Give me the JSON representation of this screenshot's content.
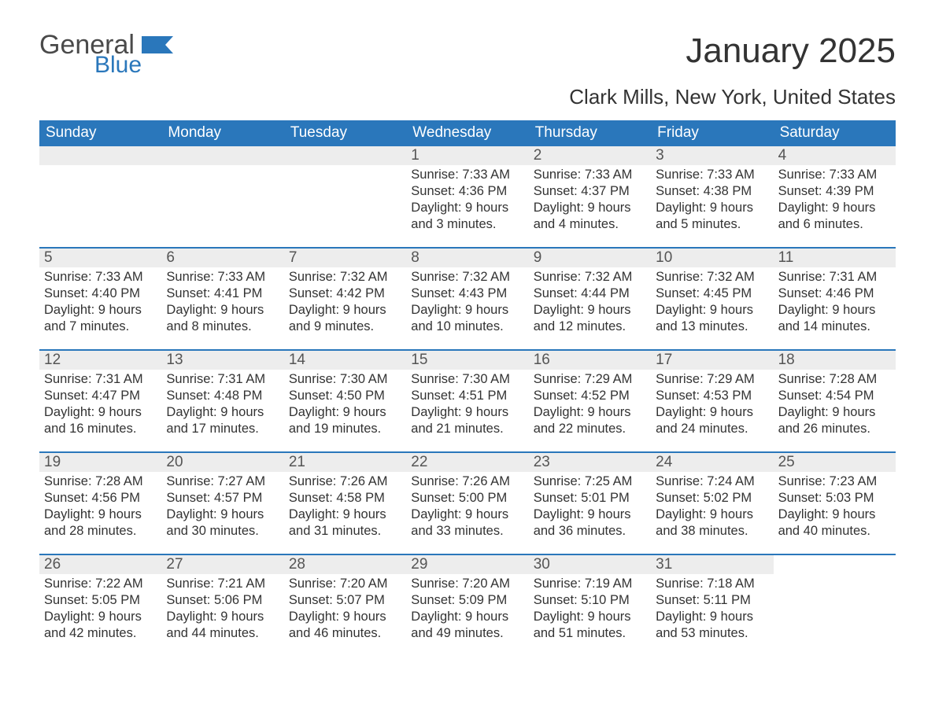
{
  "logo": {
    "word1": "General",
    "word2": "Blue",
    "shape_color": "#2a77bb",
    "word1_color": "#4a4a4a",
    "word2_color": "#2a77bb"
  },
  "title": "January 2025",
  "location": "Clark Mills, New York, United States",
  "colors": {
    "header_bg": "#2a77bb",
    "header_text": "#ffffff",
    "band_bg": "#ededed",
    "row_border": "#2a77bb",
    "text": "#333333"
  },
  "weekdays": [
    "Sunday",
    "Monday",
    "Tuesday",
    "Wednesday",
    "Thursday",
    "Friday",
    "Saturday"
  ],
  "weeks": [
    [
      {
        "empty": true
      },
      {
        "empty": true
      },
      {
        "empty": true
      },
      {
        "day": "1",
        "sunrise": "Sunrise: 7:33 AM",
        "sunset": "Sunset: 4:36 PM",
        "dl1": "Daylight: 9 hours",
        "dl2": "and 3 minutes."
      },
      {
        "day": "2",
        "sunrise": "Sunrise: 7:33 AM",
        "sunset": "Sunset: 4:37 PM",
        "dl1": "Daylight: 9 hours",
        "dl2": "and 4 minutes."
      },
      {
        "day": "3",
        "sunrise": "Sunrise: 7:33 AM",
        "sunset": "Sunset: 4:38 PM",
        "dl1": "Daylight: 9 hours",
        "dl2": "and 5 minutes."
      },
      {
        "day": "4",
        "sunrise": "Sunrise: 7:33 AM",
        "sunset": "Sunset: 4:39 PM",
        "dl1": "Daylight: 9 hours",
        "dl2": "and 6 minutes."
      }
    ],
    [
      {
        "day": "5",
        "sunrise": "Sunrise: 7:33 AM",
        "sunset": "Sunset: 4:40 PM",
        "dl1": "Daylight: 9 hours",
        "dl2": "and 7 minutes."
      },
      {
        "day": "6",
        "sunrise": "Sunrise: 7:33 AM",
        "sunset": "Sunset: 4:41 PM",
        "dl1": "Daylight: 9 hours",
        "dl2": "and 8 minutes."
      },
      {
        "day": "7",
        "sunrise": "Sunrise: 7:32 AM",
        "sunset": "Sunset: 4:42 PM",
        "dl1": "Daylight: 9 hours",
        "dl2": "and 9 minutes."
      },
      {
        "day": "8",
        "sunrise": "Sunrise: 7:32 AM",
        "sunset": "Sunset: 4:43 PM",
        "dl1": "Daylight: 9 hours",
        "dl2": "and 10 minutes."
      },
      {
        "day": "9",
        "sunrise": "Sunrise: 7:32 AM",
        "sunset": "Sunset: 4:44 PM",
        "dl1": "Daylight: 9 hours",
        "dl2": "and 12 minutes."
      },
      {
        "day": "10",
        "sunrise": "Sunrise: 7:32 AM",
        "sunset": "Sunset: 4:45 PM",
        "dl1": "Daylight: 9 hours",
        "dl2": "and 13 minutes."
      },
      {
        "day": "11",
        "sunrise": "Sunrise: 7:31 AM",
        "sunset": "Sunset: 4:46 PM",
        "dl1": "Daylight: 9 hours",
        "dl2": "and 14 minutes."
      }
    ],
    [
      {
        "day": "12",
        "sunrise": "Sunrise: 7:31 AM",
        "sunset": "Sunset: 4:47 PM",
        "dl1": "Daylight: 9 hours",
        "dl2": "and 16 minutes."
      },
      {
        "day": "13",
        "sunrise": "Sunrise: 7:31 AM",
        "sunset": "Sunset: 4:48 PM",
        "dl1": "Daylight: 9 hours",
        "dl2": "and 17 minutes."
      },
      {
        "day": "14",
        "sunrise": "Sunrise: 7:30 AM",
        "sunset": "Sunset: 4:50 PM",
        "dl1": "Daylight: 9 hours",
        "dl2": "and 19 minutes."
      },
      {
        "day": "15",
        "sunrise": "Sunrise: 7:30 AM",
        "sunset": "Sunset: 4:51 PM",
        "dl1": "Daylight: 9 hours",
        "dl2": "and 21 minutes."
      },
      {
        "day": "16",
        "sunrise": "Sunrise: 7:29 AM",
        "sunset": "Sunset: 4:52 PM",
        "dl1": "Daylight: 9 hours",
        "dl2": "and 22 minutes."
      },
      {
        "day": "17",
        "sunrise": "Sunrise: 7:29 AM",
        "sunset": "Sunset: 4:53 PM",
        "dl1": "Daylight: 9 hours",
        "dl2": "and 24 minutes."
      },
      {
        "day": "18",
        "sunrise": "Sunrise: 7:28 AM",
        "sunset": "Sunset: 4:54 PM",
        "dl1": "Daylight: 9 hours",
        "dl2": "and 26 minutes."
      }
    ],
    [
      {
        "day": "19",
        "sunrise": "Sunrise: 7:28 AM",
        "sunset": "Sunset: 4:56 PM",
        "dl1": "Daylight: 9 hours",
        "dl2": "and 28 minutes."
      },
      {
        "day": "20",
        "sunrise": "Sunrise: 7:27 AM",
        "sunset": "Sunset: 4:57 PM",
        "dl1": "Daylight: 9 hours",
        "dl2": "and 30 minutes."
      },
      {
        "day": "21",
        "sunrise": "Sunrise: 7:26 AM",
        "sunset": "Sunset: 4:58 PM",
        "dl1": "Daylight: 9 hours",
        "dl2": "and 31 minutes."
      },
      {
        "day": "22",
        "sunrise": "Sunrise: 7:26 AM",
        "sunset": "Sunset: 5:00 PM",
        "dl1": "Daylight: 9 hours",
        "dl2": "and 33 minutes."
      },
      {
        "day": "23",
        "sunrise": "Sunrise: 7:25 AM",
        "sunset": "Sunset: 5:01 PM",
        "dl1": "Daylight: 9 hours",
        "dl2": "and 36 minutes."
      },
      {
        "day": "24",
        "sunrise": "Sunrise: 7:24 AM",
        "sunset": "Sunset: 5:02 PM",
        "dl1": "Daylight: 9 hours",
        "dl2": "and 38 minutes."
      },
      {
        "day": "25",
        "sunrise": "Sunrise: 7:23 AM",
        "sunset": "Sunset: 5:03 PM",
        "dl1": "Daylight: 9 hours",
        "dl2": "and 40 minutes."
      }
    ],
    [
      {
        "day": "26",
        "sunrise": "Sunrise: 7:22 AM",
        "sunset": "Sunset: 5:05 PM",
        "dl1": "Daylight: 9 hours",
        "dl2": "and 42 minutes."
      },
      {
        "day": "27",
        "sunrise": "Sunrise: 7:21 AM",
        "sunset": "Sunset: 5:06 PM",
        "dl1": "Daylight: 9 hours",
        "dl2": "and 44 minutes."
      },
      {
        "day": "28",
        "sunrise": "Sunrise: 7:20 AM",
        "sunset": "Sunset: 5:07 PM",
        "dl1": "Daylight: 9 hours",
        "dl2": "and 46 minutes."
      },
      {
        "day": "29",
        "sunrise": "Sunrise: 7:20 AM",
        "sunset": "Sunset: 5:09 PM",
        "dl1": "Daylight: 9 hours",
        "dl2": "and 49 minutes."
      },
      {
        "day": "30",
        "sunrise": "Sunrise: 7:19 AM",
        "sunset": "Sunset: 5:10 PM",
        "dl1": "Daylight: 9 hours",
        "dl2": "and 51 minutes."
      },
      {
        "day": "31",
        "sunrise": "Sunrise: 7:18 AM",
        "sunset": "Sunset: 5:11 PM",
        "dl1": "Daylight: 9 hours",
        "dl2": "and 53 minutes."
      },
      {
        "empty": true,
        "noband": true
      }
    ]
  ]
}
